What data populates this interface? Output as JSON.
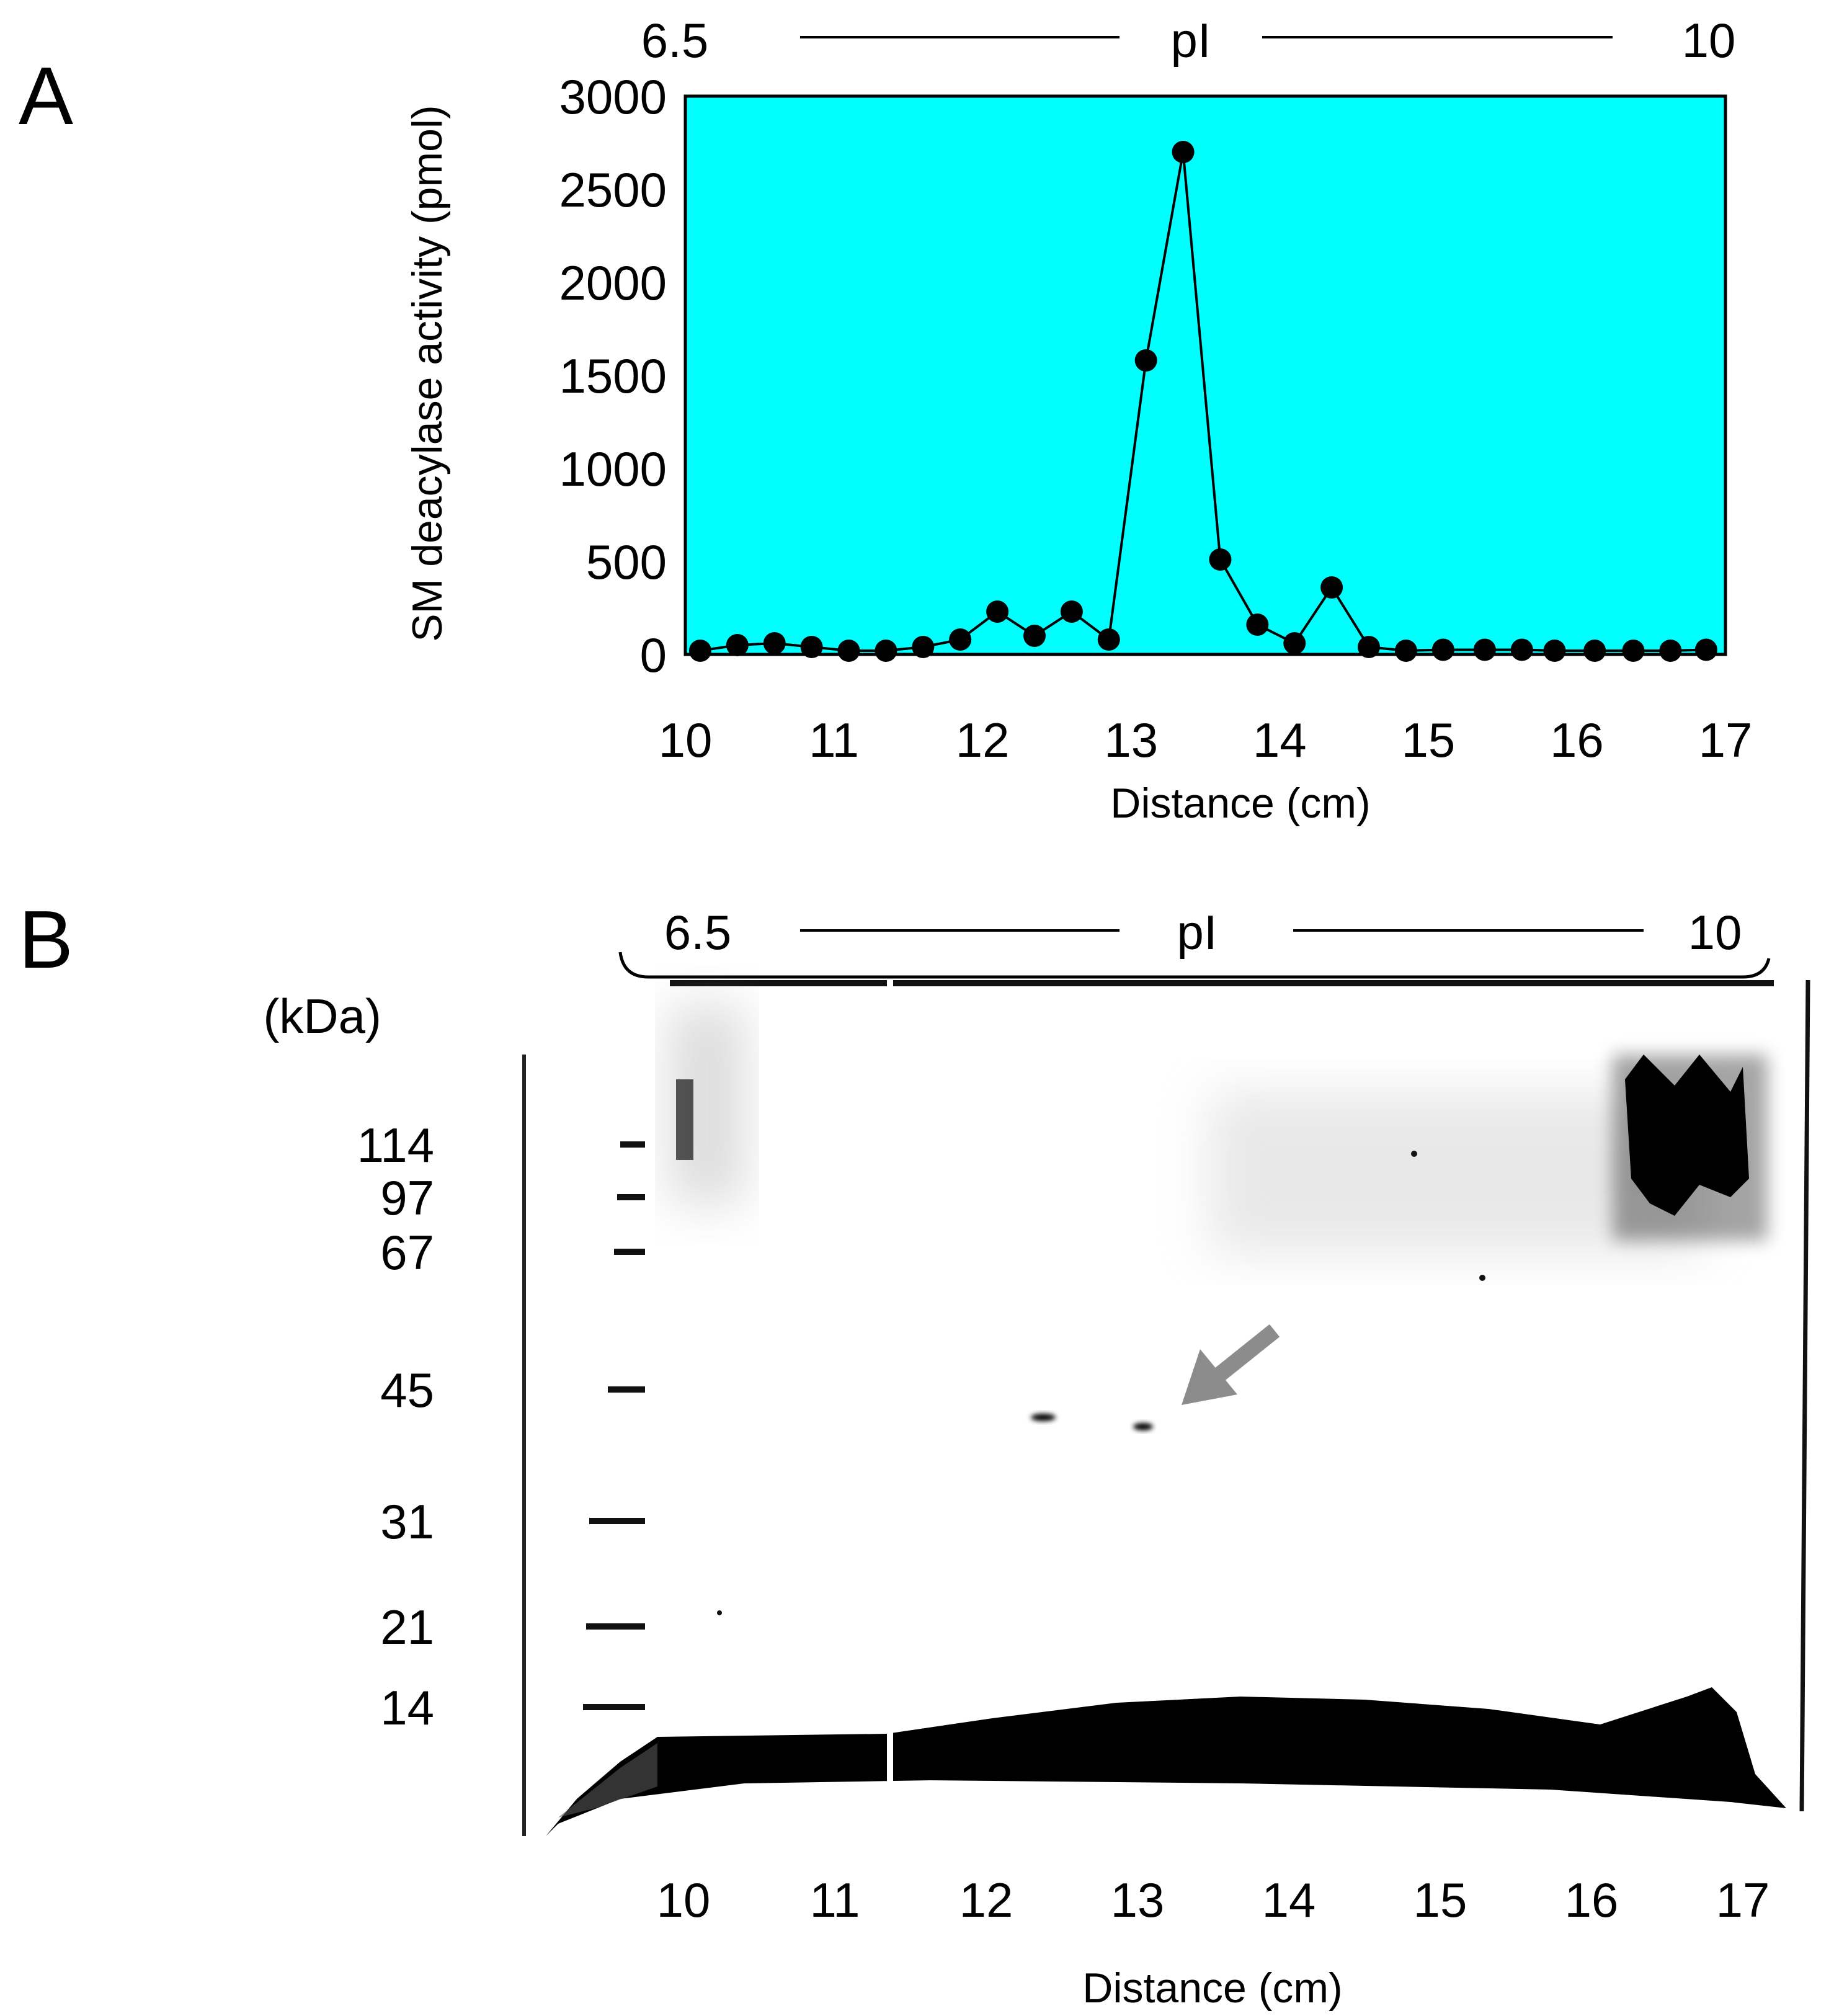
{
  "figure": {
    "panel_a_label": "A",
    "panel_b_label": "B"
  },
  "panel_a": {
    "ph_scale": {
      "low": "6.5",
      "label": "pI",
      "high": "10"
    }
  },
  "chart_data": {
    "type": "line",
    "title": "",
    "xlabel": "Distance (cm)",
    "ylabel": "SM deacylase activity (pmol)",
    "xlim": [
      10,
      17
    ],
    "ylim": [
      0,
      3000
    ],
    "x_ticks": [
      10,
      11,
      12,
      13,
      14,
      15,
      16,
      17
    ],
    "y_ticks": [
      0,
      500,
      1000,
      1500,
      2000,
      2500,
      3000
    ],
    "grid": false,
    "background_color": "#00FFFF",
    "series": [
      {
        "marker": "filled-circle",
        "color": "#000000",
        "x": [
          10.1,
          10.35,
          10.6,
          10.85,
          11.1,
          11.35,
          11.6,
          11.85,
          12.1,
          12.35,
          12.6,
          12.85,
          13.1,
          13.35,
          13.6,
          13.85,
          14.1,
          14.35,
          14.6,
          14.85,
          15.1,
          15.38,
          15.63,
          15.85,
          16.12,
          16.38,
          16.63,
          16.87
        ],
        "y": [
          20,
          50,
          60,
          40,
          20,
          20,
          40,
          80,
          230,
          100,
          230,
          80,
          1580,
          2700,
          510,
          160,
          60,
          360,
          40,
          20,
          25,
          25,
          25,
          20,
          20,
          20,
          20,
          25
        ]
      }
    ]
  },
  "panel_b": {
    "ph_scale": {
      "low": "6.5",
      "label": "pI",
      "high": "10"
    },
    "kda_label": "(kDa)",
    "markers": [
      "114",
      "97",
      "67",
      "45",
      "31",
      "21",
      "14"
    ],
    "x_ticks": [
      "10",
      "11",
      "12",
      "13",
      "14",
      "15",
      "16",
      "17"
    ],
    "xlabel": "Distance (cm)",
    "gel_background": "#ffffff",
    "band_color": "#000000",
    "arrow_color": "#8c8c8c"
  }
}
